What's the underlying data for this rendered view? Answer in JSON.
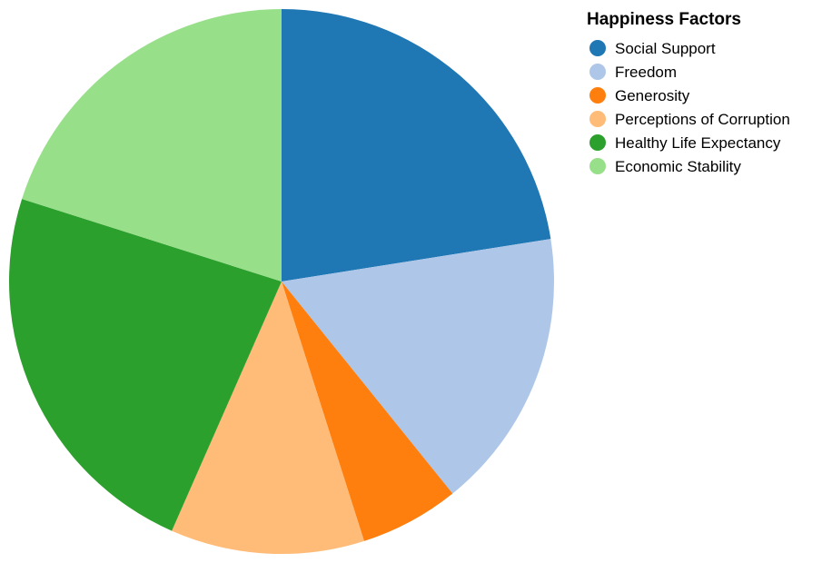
{
  "chart_data": {
    "type": "pie",
    "legend_title": "Happiness Factors",
    "legend_position": "top-right",
    "categories": [
      "Social Support",
      "Freedom",
      "Generosity",
      "Perceptions of Corruption",
      "Healthy Life Expectancy",
      "Economic Stability"
    ],
    "values": [
      22.5,
      16.7,
      5.9,
      11.5,
      23.3,
      20.1
    ],
    "colors": [
      "#1f77b4",
      "#aec7e8",
      "#ff7f0e",
      "#ffbb78",
      "#2ca02c",
      "#98df8a"
    ]
  }
}
